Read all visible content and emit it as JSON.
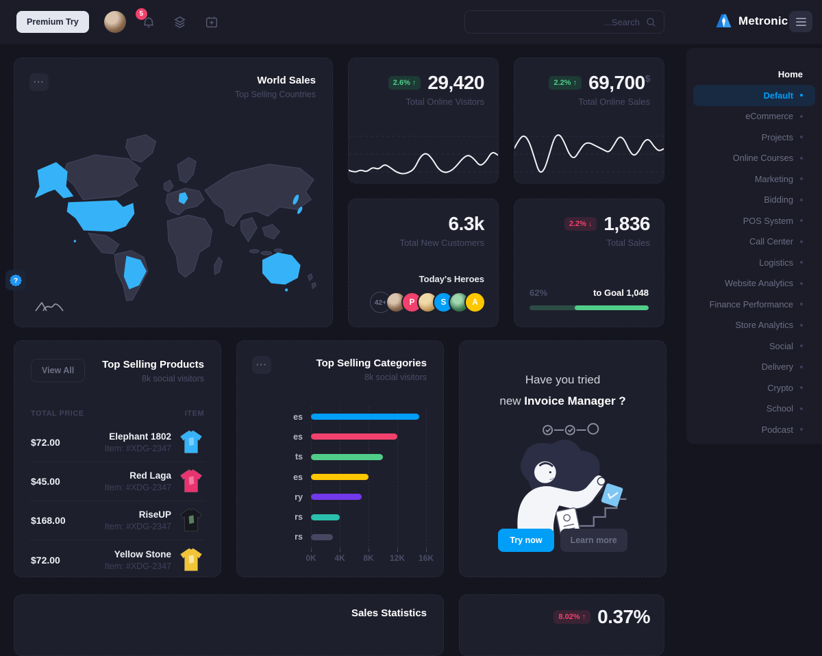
{
  "topbar": {
    "premium_label": "Premium Try",
    "notification_count": "5",
    "search_placeholder": "...Search",
    "brand": "Metronic"
  },
  "icons": {
    "ellipsis": "···",
    "help_glyph": "?"
  },
  "sidebar": {
    "heading": "Home",
    "items": [
      {
        "label": "Default",
        "active": true
      },
      {
        "label": "eCommerce"
      },
      {
        "label": "Projects"
      },
      {
        "label": "Online Courses"
      },
      {
        "label": "Marketing"
      },
      {
        "label": "Bidding"
      },
      {
        "label": "POS System"
      },
      {
        "label": "Call Center"
      },
      {
        "label": "Logistics"
      },
      {
        "label": "Website Analytics"
      },
      {
        "label": "Finance Performance"
      },
      {
        "label": "Store Analytics"
      },
      {
        "label": "Social"
      },
      {
        "label": "Delivery"
      },
      {
        "label": "Crypto"
      },
      {
        "label": "School"
      },
      {
        "label": "Podcast"
      }
    ]
  },
  "world_sales": {
    "title": "World Sales",
    "subtitle": "Top Selling Countries",
    "highlight_color": "#36b3f8",
    "highlighted_countries": [
      "United States",
      "Germany",
      "Brazil",
      "Japan",
      "Australia"
    ]
  },
  "visitors": {
    "badge": "2.6%",
    "arrow": "↑",
    "value": "29,420",
    "label": "Total Online Visitors",
    "sparkline": [
      80,
      84,
      79,
      83,
      75,
      79,
      70,
      76,
      83,
      86,
      84,
      78,
      58,
      52,
      62,
      78,
      84,
      82,
      74,
      62,
      55,
      62,
      74,
      66,
      50,
      56
    ]
  },
  "online_sales": {
    "badge": "2.2%",
    "arrow": "↑",
    "value": "69,700",
    "currency": "$",
    "label": "Total Online Sales",
    "sparkline": [
      45,
      30,
      24,
      35,
      60,
      85,
      80,
      55,
      28,
      22,
      35,
      55,
      62,
      50,
      38,
      36,
      40,
      44,
      48,
      52,
      40,
      26,
      30,
      48,
      58,
      50,
      34,
      30,
      42,
      50,
      46
    ]
  },
  "new_customers": {
    "value": "6.3k",
    "label": "Total New Customers",
    "heroes_title": "Today's Heroes",
    "avatars": [
      {
        "type": "count",
        "text": "42+"
      },
      {
        "type": "photo-a"
      },
      {
        "type": "letter",
        "text": "P",
        "color": "#f1416c"
      },
      {
        "type": "photo-b"
      },
      {
        "type": "letter",
        "text": "S",
        "color": "#009ef7"
      },
      {
        "type": "photo-c"
      },
      {
        "type": "letter",
        "text": "A",
        "color": "#ffc700"
      }
    ]
  },
  "total_sales": {
    "badge": "2.2%",
    "arrow": "↓",
    "value": "1,836",
    "label": "Total Sales",
    "progress_label": "62%",
    "goal_label": "to Goal 1,048",
    "progress_pct": 62
  },
  "products": {
    "view_all": "View All",
    "title": "Top Selling Products",
    "subtitle": "8k social visitors",
    "col_price": "TOTAL PRICE",
    "col_item": "ITEM",
    "rows": [
      {
        "price": "$72.00",
        "name": "Elephant 1802",
        "item": "Item: #XDG-2347",
        "tee_color": "#36b3f8"
      },
      {
        "price": "$45.00",
        "name": "Red Laga",
        "item": "Item: #XDG-2347",
        "tee_color": "#e8336f"
      },
      {
        "price": "$168.00",
        "name": "RiseUP",
        "item": "Item: #XDG-2347",
        "tee_color": "#17171f"
      },
      {
        "price": "$72.00",
        "name": "Yellow Stone",
        "item": "Item: #XDG-2347",
        "tee_color": "#f0c436"
      }
    ]
  },
  "categories": {
    "title": "Top Selling Categories",
    "subtitle": "8k social visitors",
    "chart_data": {
      "type": "bar",
      "orientation": "horizontal",
      "categories": [
        "es",
        "es",
        "ts",
        "es",
        "ry",
        "rs",
        "rs"
      ],
      "values": [
        15000,
        12000,
        10000,
        8000,
        7000,
        4000,
        3000
      ],
      "colors": [
        "#009ef7",
        "#f1416c",
        "#50cd89",
        "#ffc700",
        "#7239ea",
        "#2bbfad",
        "#474761"
      ],
      "xlabel_ticks": [
        "0K",
        "4K",
        "8K",
        "12K",
        "16K"
      ],
      "xlim": [
        0,
        16000
      ],
      "grid": "dashed-vertical",
      "note": "category labels are clipped by the card edge in the screenshot"
    }
  },
  "invoice": {
    "line1": "Have you tried",
    "line2_normal": "new ",
    "line2_bold": "Invoice Manager ?",
    "try_label": "Try now",
    "learn_label": "Learn more"
  },
  "sales_statistics": {
    "title": "Sales Statistics"
  },
  "conversion": {
    "badge": "8.02%",
    "arrow": "↑",
    "value": "0.37%"
  }
}
